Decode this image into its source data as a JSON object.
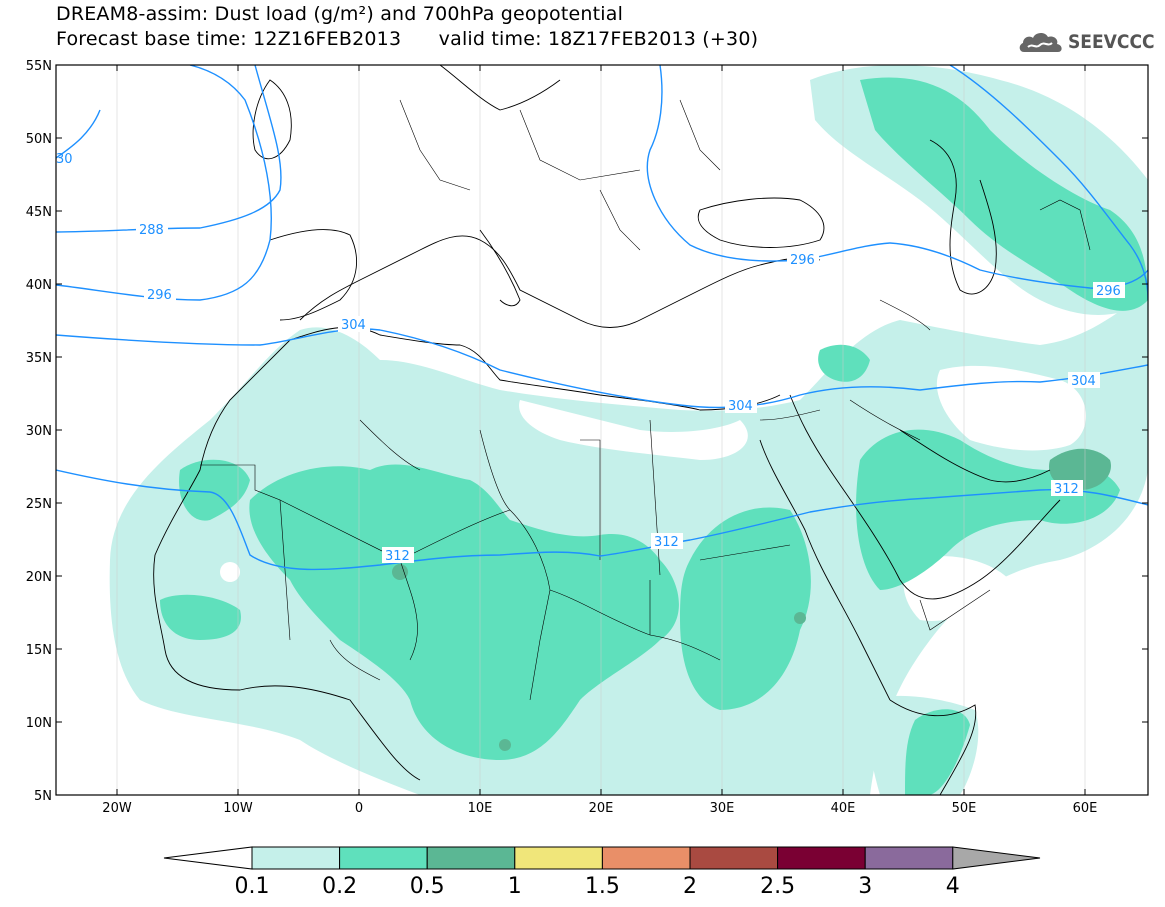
{
  "header": {
    "title_line1": "DREAM8-assim: Dust load (g/m²) and 700hPa geopotential",
    "title_line2": "Forecast base time: 12Z16FEB2013      valid time: 18Z17FEB2013 (+30)",
    "logo_text": "SEEVCCC",
    "logo_icon": "cloud-icon"
  },
  "map": {
    "lat_labels": [
      "55N",
      "50N",
      "45N",
      "40N",
      "35N",
      "30N",
      "25N",
      "20N",
      "15N",
      "10N",
      "5N"
    ],
    "lon_labels": [
      "20W",
      "10W",
      "0",
      "10E",
      "20E",
      "30E",
      "40E",
      "50E",
      "60E"
    ],
    "contour_labels": [
      "288",
      "296",
      "304",
      "304",
      "296",
      "296",
      "304",
      "312",
      "312",
      "312",
      "30"
    ]
  },
  "colorbar": {
    "labels": [
      "0.1",
      "0.2",
      "0.5",
      "1",
      "1.5",
      "2",
      "2.5",
      "3",
      "4"
    ],
    "colors": [
      "#ffffff",
      "#c5f0ea",
      "#5fe0bc",
      "#5bb794",
      "#f0e67a",
      "#e98f68",
      "#a94a41",
      "#7a0033",
      "#8a6a9c",
      "#a8a8a8"
    ]
  },
  "legend_colors": {
    "dust_low": "#c5f0ea",
    "dust_mid": "#5fe0bc",
    "dust_high": "#5bb794",
    "contour": "#1e90ff"
  }
}
